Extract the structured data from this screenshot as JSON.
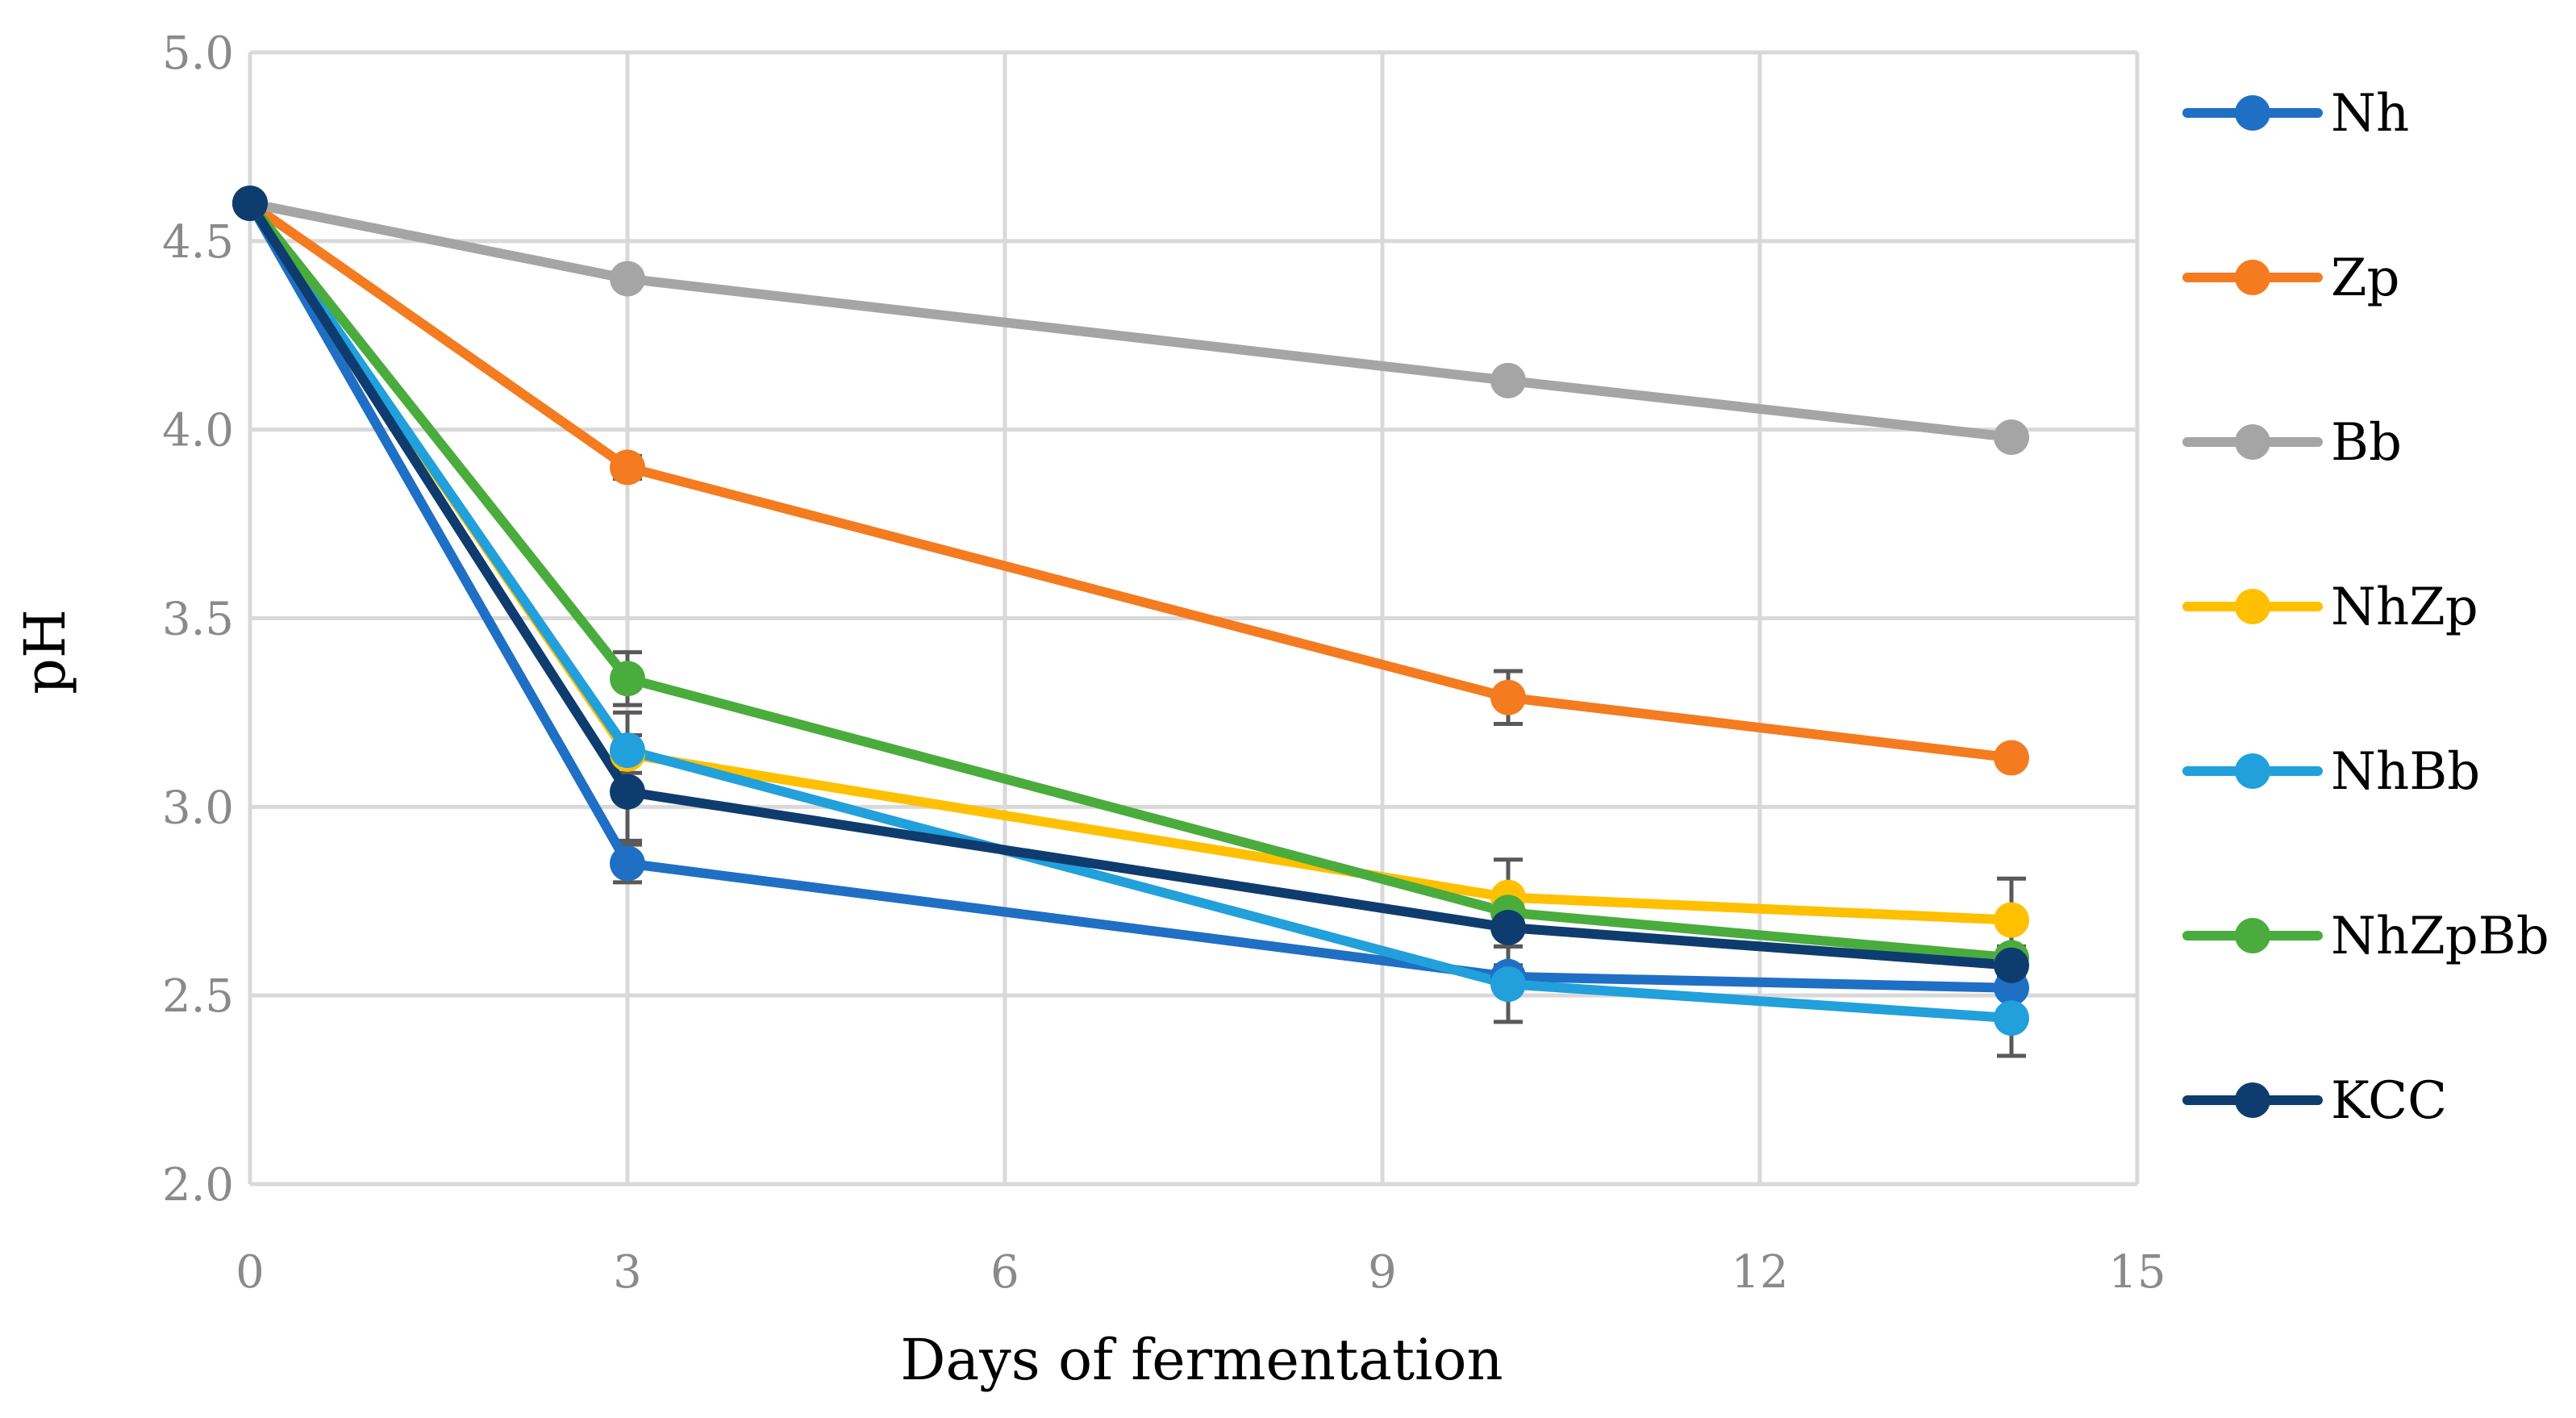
{
  "chart_data": {
    "type": "line",
    "title": "",
    "xlabel": "Days of fermentation",
    "ylabel": "pH",
    "xlim": [
      0,
      15
    ],
    "ylim": [
      2.0,
      5.0
    ],
    "xticks": [
      "0",
      "3",
      "6",
      "9",
      "12",
      "15"
    ],
    "yticks": [
      "2.0",
      "2.5",
      "3.0",
      "3.5",
      "4.0",
      "4.5",
      "5.0"
    ],
    "grid": true,
    "legend_position": "right",
    "x": [
      0,
      3,
      10,
      14
    ],
    "series": [
      {
        "name": "Nh",
        "color": "#1f6fc5",
        "values": [
          4.6,
          2.85,
          2.55,
          2.52
        ],
        "errors": [
          0,
          0.05,
          0.03,
          0.02
        ]
      },
      {
        "name": "Zp",
        "color": "#f47b20",
        "values": [
          4.6,
          3.9,
          3.29,
          3.13
        ],
        "errors": [
          0,
          0.03,
          0.07,
          0.02
        ]
      },
      {
        "name": "Bb",
        "color": "#a5a5a5",
        "values": [
          4.6,
          4.4,
          4.13,
          3.98
        ],
        "errors": [
          0,
          0.02,
          0.02,
          0.02
        ]
      },
      {
        "name": "NhZp",
        "color": "#ffc000",
        "values": [
          4.6,
          3.14,
          2.76,
          2.7
        ],
        "errors": [
          0,
          0.05,
          0.1,
          0.11
        ]
      },
      {
        "name": "NhBb",
        "color": "#21a0dc",
        "values": [
          4.6,
          3.15,
          2.53,
          2.44
        ],
        "errors": [
          0,
          0.1,
          0.1,
          0.1
        ]
      },
      {
        "name": "NhZpBb",
        "color": "#4aac3c",
        "values": [
          4.6,
          3.34,
          2.72,
          2.6
        ],
        "errors": [
          0,
          0.07,
          0.05,
          0.03
        ]
      },
      {
        "name": "KCC",
        "color": "#0e3c6e",
        "values": [
          4.6,
          3.04,
          2.68,
          2.58
        ],
        "errors": [
          0,
          0.13,
          0.05,
          0.03
        ]
      }
    ]
  }
}
